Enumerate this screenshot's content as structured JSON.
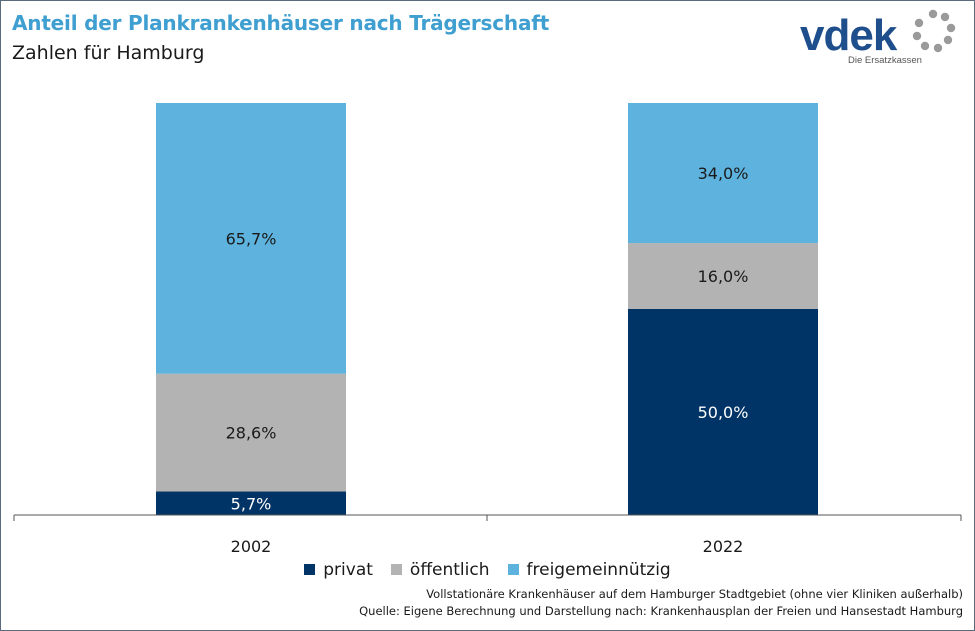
{
  "title": "Anteil der Plankrankenhäuser nach Trägerschaft",
  "subtitle": "Zahlen für Hamburg",
  "logo": {
    "text": "vdek",
    "tagline": "Die Ersatzkassen"
  },
  "colors": {
    "privat": "#003366",
    "oeffentlich": "#b3b3b3",
    "freigemeinnuetzig": "#5db3de",
    "title": "#3f9fd1"
  },
  "chart_data": {
    "type": "bar",
    "stacked": true,
    "percent": true,
    "categories": [
      "2002",
      "2022"
    ],
    "series": [
      {
        "name": "privat",
        "values": [
          5.7,
          50.0
        ],
        "labels": [
          "5,7%",
          "50,0%"
        ],
        "color": "#003366",
        "label_color": "#ffffff"
      },
      {
        "name": "öffentlich",
        "values": [
          28.6,
          16.0
        ],
        "labels": [
          "28,6%",
          "16,0%"
        ],
        "color": "#b3b3b3",
        "label_color": "#1a1a1a"
      },
      {
        "name": "freigemeinnützig",
        "values": [
          65.7,
          34.0
        ],
        "labels": [
          "65,7%",
          "34,0%"
        ],
        "color": "#5db3de",
        "label_color": "#1a1a1a"
      }
    ],
    "ylim": [
      0,
      100
    ],
    "grid": false,
    "legend": "bottom"
  },
  "footnotes": [
    "Vollstationäre Krankenhäuser auf dem Hamburger Stadtgebiet (ohne vier Kliniken außerhalb)",
    "Quelle: Eigene Berechnung und Darstellung nach: Krankenhausplan der Freien und Hansestadt Hamburg"
  ]
}
